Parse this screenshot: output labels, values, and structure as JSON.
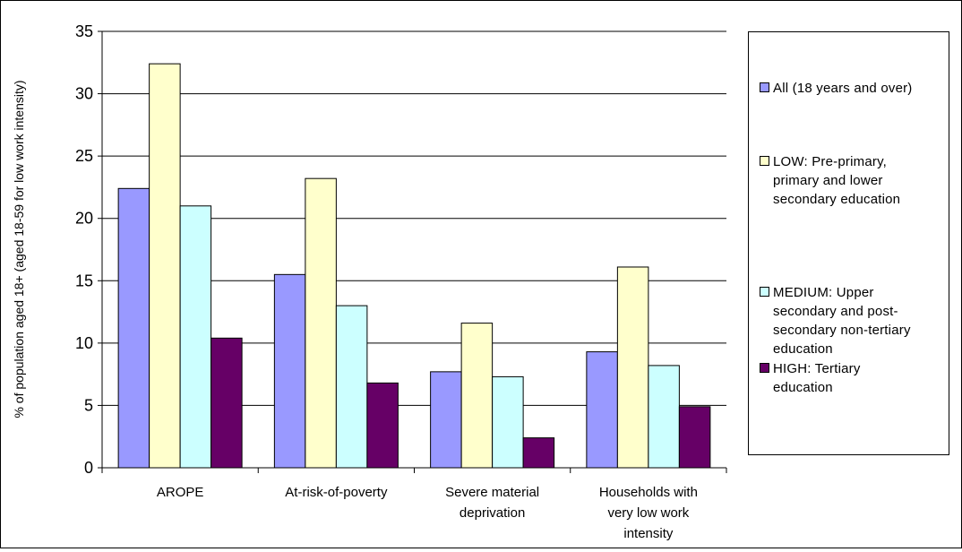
{
  "chart_data": {
    "type": "bar",
    "title": "",
    "xlabel": "",
    "ylabel": "% of population aged 18+ (aged 18-59 for low work intensity)",
    "ylim": [
      0,
      35
    ],
    "yticks": [
      "0",
      "5",
      "10",
      "15",
      "20",
      "25",
      "30",
      "35"
    ],
    "grid": true,
    "legend_position": "right",
    "categories": [
      "AROPE",
      "At-risk-of-poverty",
      "Severe material\ndeprivation",
      "Households with\nvery low work\nintensity"
    ],
    "series": [
      {
        "name": "All (18 years and over)",
        "color": "#9999ff",
        "values": [
          22.4,
          15.5,
          7.7,
          9.3
        ]
      },
      {
        "name": "LOW: Pre-primary,\nprimary and lower\nsecondary education",
        "color": "#ffffcc",
        "values": [
          32.4,
          23.2,
          11.6,
          16.1
        ]
      },
      {
        "name": "MEDIUM: Upper\nsecondary and post-\nsecondary non-tertiary\neducation",
        "color": "#ccffff",
        "values": [
          21.0,
          13.0,
          7.3,
          8.2
        ]
      },
      {
        "name": "HIGH: Tertiary\neducation",
        "color": "#660066",
        "values": [
          10.4,
          6.8,
          2.4,
          4.9
        ]
      }
    ]
  }
}
